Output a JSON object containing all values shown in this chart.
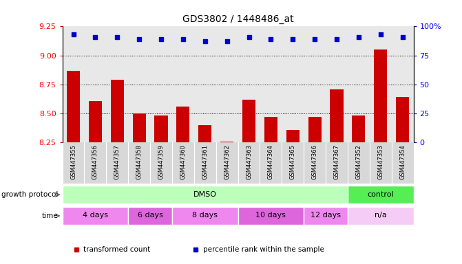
{
  "title": "GDS3802 / 1448486_at",
  "samples": [
    "GSM447355",
    "GSM447356",
    "GSM447357",
    "GSM447358",
    "GSM447359",
    "GSM447360",
    "GSM447361",
    "GSM447362",
    "GSM447363",
    "GSM447364",
    "GSM447365",
    "GSM447366",
    "GSM447367",
    "GSM447352",
    "GSM447353",
    "GSM447354"
  ],
  "bar_values": [
    8.87,
    8.61,
    8.79,
    8.5,
    8.48,
    8.56,
    8.4,
    8.26,
    8.62,
    8.47,
    8.36,
    8.47,
    8.71,
    8.48,
    9.05,
    8.64
  ],
  "dot_values": [
    93,
    91,
    91,
    89,
    89,
    89,
    87,
    87,
    91,
    89,
    89,
    89,
    89,
    91,
    93,
    91
  ],
  "bar_color": "#cc0000",
  "dot_color": "#0000cc",
  "ylim_left": [
    8.25,
    9.25
  ],
  "ylim_right": [
    0,
    100
  ],
  "yticks_left": [
    8.25,
    8.5,
    8.75,
    9.0,
    9.25
  ],
  "yticks_right": [
    0,
    25,
    50,
    75,
    100
  ],
  "grid_lines": [
    9.0,
    8.75,
    8.5
  ],
  "growth_protocol_groups": [
    {
      "label": "DMSO",
      "start": 0,
      "end": 13,
      "color": "#bbffbb"
    },
    {
      "label": "control",
      "start": 13,
      "end": 16,
      "color": "#55ee55"
    }
  ],
  "time_groups": [
    {
      "label": "4 days",
      "start": 0,
      "end": 3,
      "color": "#ee88ee"
    },
    {
      "label": "6 days",
      "start": 3,
      "end": 5,
      "color": "#dd66dd"
    },
    {
      "label": "8 days",
      "start": 5,
      "end": 8,
      "color": "#ee88ee"
    },
    {
      "label": "10 days",
      "start": 8,
      "end": 11,
      "color": "#dd66dd"
    },
    {
      "label": "12 days",
      "start": 11,
      "end": 13,
      "color": "#ee88ee"
    },
    {
      "label": "n/a",
      "start": 13,
      "end": 16,
      "color": "#f5ccf5"
    }
  ],
  "legend_items": [
    "transformed count",
    "percentile rank within the sample"
  ],
  "background_color": "#ffffff",
  "plot_bg_color": "#e8e8e8",
  "sample_label_bg": "#d8d8d8"
}
